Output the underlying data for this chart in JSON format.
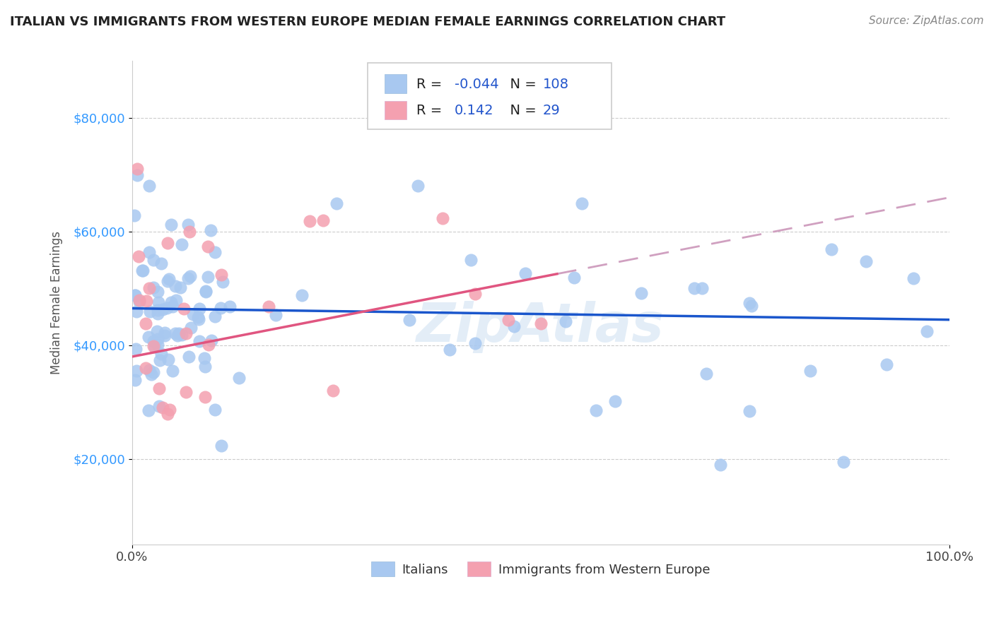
{
  "title": "ITALIAN VS IMMIGRANTS FROM WESTERN EUROPE MEDIAN FEMALE EARNINGS CORRELATION CHART",
  "source": "Source: ZipAtlas.com",
  "ylabel": "Median Female Earnings",
  "xlim": [
    0,
    1
  ],
  "ylim": [
    5000,
    90000
  ],
  "yticks": [
    20000,
    40000,
    60000,
    80000
  ],
  "ytick_labels": [
    "$20,000",
    "$40,000",
    "$60,000",
    "$80,000"
  ],
  "xtick_labels": [
    "0.0%",
    "100.0%"
  ],
  "legend_italians": "Italians",
  "legend_immigrants": "Immigrants from Western Europe",
  "R_italians": -0.044,
  "N_italians": 108,
  "R_immigrants": 0.142,
  "N_immigrants": 29,
  "color_italians": "#a8c8f0",
  "color_immigrants": "#f4a0b0",
  "line_color_italians": "#1a56cc",
  "line_color_immigrants_solid": "#e05580",
  "line_color_immigrants_dashed": "#d0a0c0",
  "background_color": "#ffffff",
  "title_fontsize": 13,
  "source_fontsize": 11,
  "tick_fontsize": 13,
  "ylabel_fontsize": 12
}
